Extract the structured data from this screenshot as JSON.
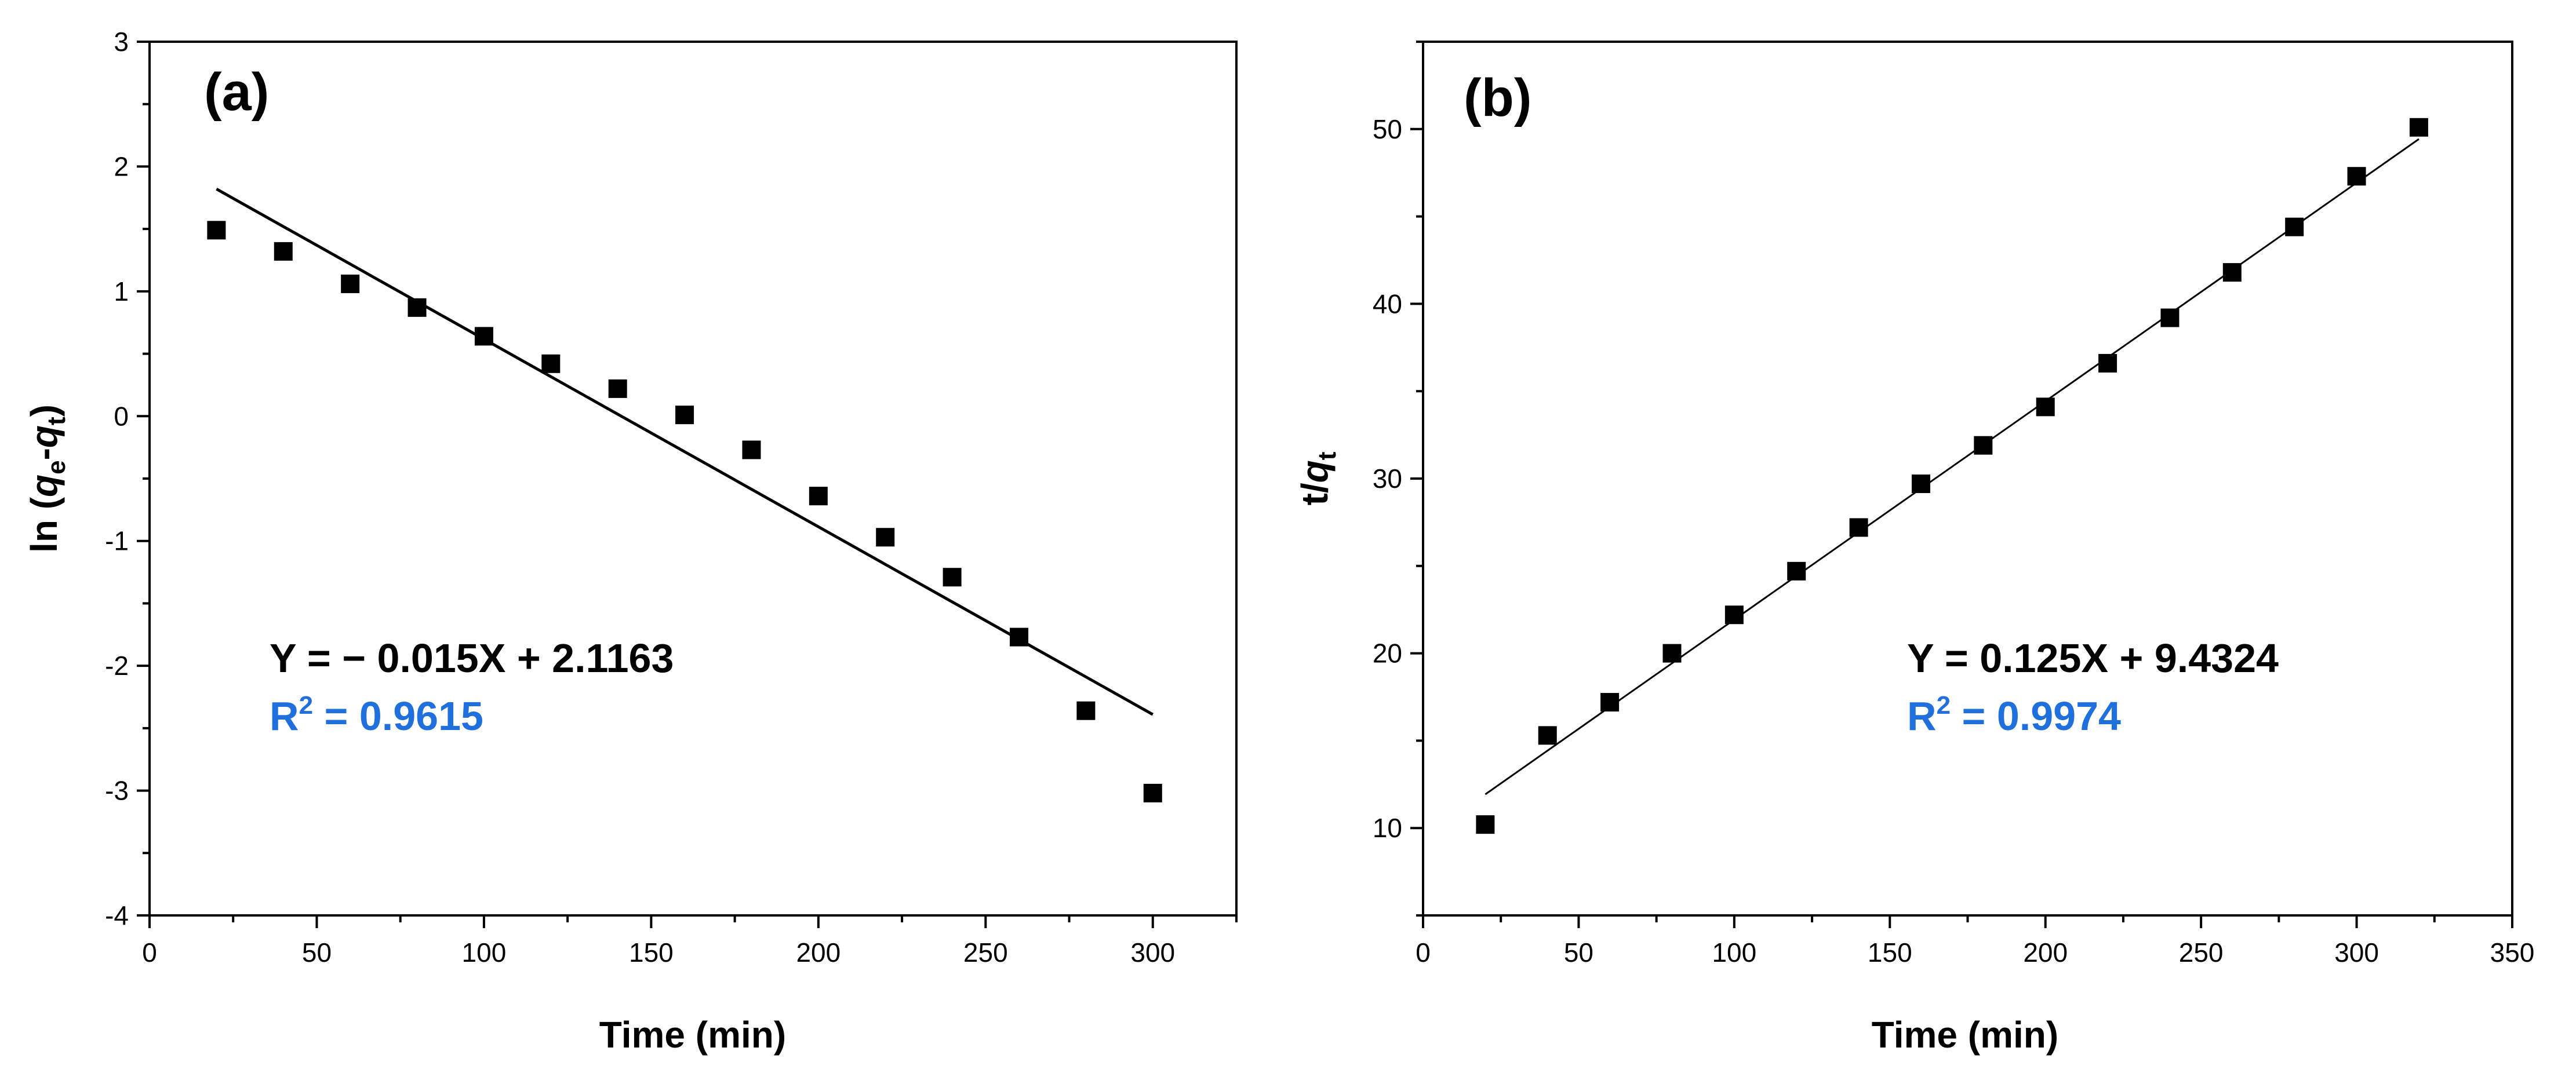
{
  "chart_data": [
    {
      "type": "scatter",
      "panel_label": "(a)",
      "title": "",
      "xlabel": "Time (min)",
      "ylabel": {
        "prefix": "ln (",
        "q1": "q",
        "sub1": "e",
        "dash": "-",
        "q2": "q",
        "sub2": "t",
        "suffix": ")"
      },
      "xlim": [
        0,
        325
      ],
      "ylim": [
        -4,
        3
      ],
      "xticks": [
        0,
        50,
        100,
        150,
        200,
        250,
        300
      ],
      "xtick_labels": [
        "0",
        "50",
        "100",
        "150",
        "200",
        "250",
        "300"
      ],
      "yticks": [
        -4,
        -3,
        -2,
        -1,
        0,
        1,
        2,
        3
      ],
      "ytick_labels": [
        "-4",
        "-3",
        "-2",
        "-1",
        "0",
        "1",
        "2",
        "3"
      ],
      "x": [
        20,
        40,
        60,
        80,
        100,
        120,
        140,
        160,
        180,
        200,
        220,
        240,
        260,
        280,
        300
      ],
      "y": [
        1.49,
        1.32,
        1.06,
        0.87,
        0.64,
        0.42,
        0.22,
        0.01,
        -0.27,
        -0.64,
        -0.97,
        -1.29,
        -1.77,
        -2.36,
        -3.02
      ],
      "fit": {
        "x": [
          20,
          300
        ],
        "y": [
          1.82,
          -2.39
        ]
      },
      "equation": "Y = − 0.015X + 2.1163",
      "r2": {
        "prefix": "R",
        "sup": "2",
        "value": " = 0.9615"
      },
      "equation_color": "#000000",
      "r2_color": "#1f6fdc"
    },
    {
      "type": "scatter",
      "panel_label": "(b)",
      "title": "",
      "xlabel": "Time (min)",
      "ylabel": {
        "prefix": "t/",
        "q": "q",
        "sub": "t"
      },
      "xlim": [
        0,
        350
      ],
      "ylim": [
        5,
        55
      ],
      "xticks": [
        0,
        50,
        100,
        150,
        200,
        250,
        300,
        350
      ],
      "xtick_labels": [
        "0",
        "50",
        "100",
        "150",
        "200",
        "250",
        "300",
        "350"
      ],
      "yticks": [
        10,
        20,
        30,
        40,
        50
      ],
      "ytick_labels": [
        "10",
        "20",
        "30",
        "40",
        "50"
      ],
      "x": [
        20,
        40,
        60,
        80,
        100,
        120,
        140,
        160,
        180,
        200,
        220,
        240,
        260,
        280,
        300,
        320
      ],
      "y": [
        10.2,
        15.3,
        17.2,
        20.0,
        22.2,
        24.7,
        27.2,
        29.7,
        31.9,
        34.1,
        36.6,
        39.2,
        41.8,
        44.4,
        47.3,
        50.1
      ],
      "fit": {
        "x": [
          20,
          320
        ],
        "y": [
          11.93,
          49.43
        ]
      },
      "equation": "Y = 0.125X + 9.4324",
      "r2": {
        "prefix": "R",
        "sup": "2",
        "value": " = 0.9974"
      },
      "equation_color": "#000000",
      "r2_color": "#1f6fdc"
    }
  ]
}
